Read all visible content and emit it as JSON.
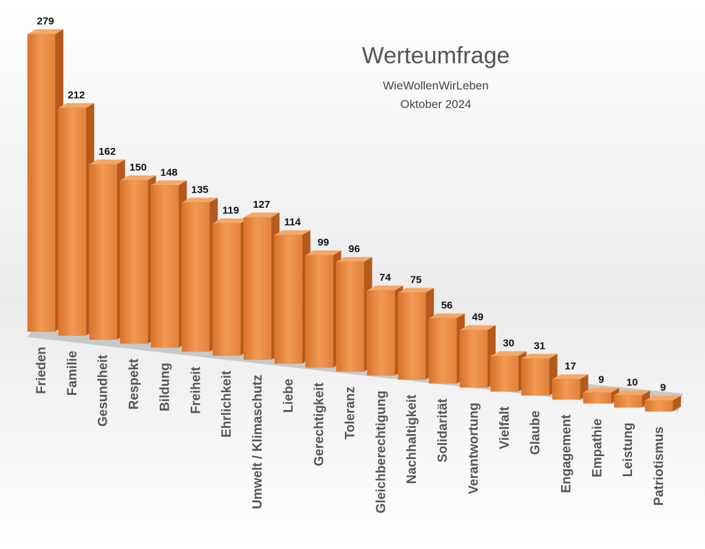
{
  "chart_data": {
    "type": "bar3d",
    "title": "Werteumfrage",
    "subtitles": [
      "WieWollenWirLeben",
      "Oktober 2024"
    ],
    "categories": [
      "Frieden",
      "Familie",
      "Gesundheit",
      "Respekt",
      "Bildung",
      "Freiheit",
      "Ehrlichkeit",
      "Umwelt / Klimaschutz",
      "Liebe",
      "Gerechtigkeit",
      "Toleranz",
      "Gleichberechtigung",
      "Nachhaltigkeit",
      "Solidarität",
      "Verantwortung",
      "Vielfalt",
      "Glaube",
      "Engagement",
      "Empathie",
      "Leistung",
      "Patriotismus"
    ],
    "values": [
      279,
      212,
      162,
      150,
      148,
      135,
      119,
      127,
      114,
      99,
      96,
      74,
      75,
      56,
      49,
      30,
      31,
      17,
      9,
      10,
      9
    ],
    "color": "#e8873a"
  }
}
